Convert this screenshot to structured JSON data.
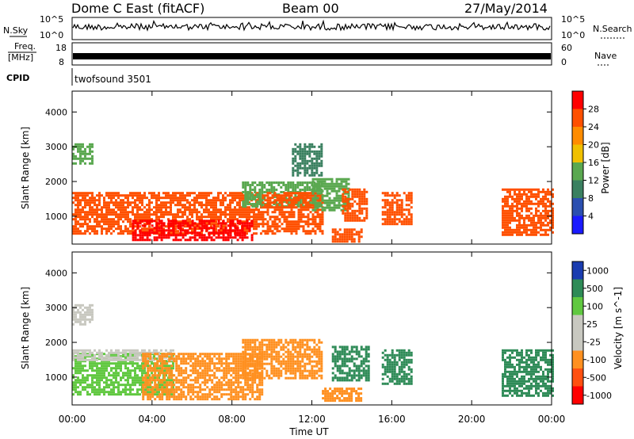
{
  "header": {
    "station": "Dome C East (fitACF)",
    "beam": "Beam 00",
    "date": "27/May/2014"
  },
  "nsky": {
    "label": "N.Sky",
    "ticks_left": [
      "10^5",
      "10^0"
    ],
    "ticks_right": [
      "10^5",
      "10^0"
    ],
    "right_label": "N.Search"
  },
  "freq": {
    "label_line1": "Freq.",
    "label_line2": "[MHz]",
    "ticks_left": [
      "18",
      "8"
    ],
    "ticks_right": [
      "60",
      "0"
    ],
    "right_label": "Nave"
  },
  "cpid": {
    "label": "CPID",
    "text": "twofsound 3501"
  },
  "colors": {
    "power": [
      "#1a1aff",
      "#2b4fb0",
      "#3a8060",
      "#5aa850",
      "#f0c000",
      "#ff8c00",
      "#ff5000",
      "#ff0000"
    ],
    "velocity": [
      "#ff0000",
      "#ff5010",
      "#ff9020",
      "#c8c8c0",
      "#c8c8c0",
      "#60c840",
      "#2e8b57",
      "#1a3cb0"
    ]
  },
  "chart_data": [
    {
      "type": "heatmap",
      "name": "power",
      "ylabel": "Slant Range [km]",
      "xlabel": "",
      "yticks": [
        1000,
        2000,
        3000,
        4000
      ],
      "ylim": [
        200,
        4600
      ],
      "xlim": [
        0,
        24
      ],
      "colorbar": {
        "label": "Power [dB]",
        "ticks": [
          "4",
          "8",
          "12",
          "16",
          "20",
          "24",
          "28"
        ],
        "levels": [
          0,
          4,
          8,
          12,
          16,
          20,
          24,
          28,
          32
        ]
      },
      "echo_regions": [
        {
          "t_start": 0.0,
          "t_end": 1.0,
          "r_min": 2500,
          "r_max": 3100,
          "level": 12
        },
        {
          "t_start": 0.0,
          "t_end": 9.5,
          "r_min": 500,
          "r_max": 1700,
          "level": 26
        },
        {
          "t_start": 3.0,
          "t_end": 9.0,
          "r_min": 300,
          "r_max": 900,
          "level": 28
        },
        {
          "t_start": 8.5,
          "t_end": 12.5,
          "r_min": 1300,
          "r_max": 2000,
          "level": 14
        },
        {
          "t_start": 9.5,
          "t_end": 12.5,
          "r_min": 500,
          "r_max": 1700,
          "level": 27
        },
        {
          "t_start": 11.0,
          "t_end": 12.5,
          "r_min": 2200,
          "r_max": 3100,
          "level": 8
        },
        {
          "t_start": 12.0,
          "t_end": 13.8,
          "r_min": 1200,
          "r_max": 2100,
          "level": 14
        },
        {
          "t_start": 13.0,
          "t_end": 14.5,
          "r_min": 300,
          "r_max": 650,
          "level": 24
        },
        {
          "t_start": 13.5,
          "t_end": 14.8,
          "r_min": 900,
          "r_max": 1800,
          "level": 26
        },
        {
          "t_start": 15.5,
          "t_end": 17.0,
          "r_min": 800,
          "r_max": 1700,
          "level": 26
        },
        {
          "t_start": 21.5,
          "t_end": 24.0,
          "r_min": 500,
          "r_max": 1800,
          "level": 26
        }
      ]
    },
    {
      "type": "heatmap",
      "name": "velocity",
      "ylabel": "Slant Range [km]",
      "xlabel": "Time UT",
      "xticks": [
        "00:00",
        "04:00",
        "08:00",
        "12:00",
        "16:00",
        "20:00",
        "00:00"
      ],
      "yticks": [
        1000,
        2000,
        3000,
        4000
      ],
      "ylim": [
        200,
        4600
      ],
      "xlim": [
        0,
        24
      ],
      "colorbar": {
        "label": "Velocity [m s^-1]",
        "ticks": [
          "1000",
          "500",
          "100",
          "25",
          "-25",
          "-100",
          "-500",
          "-1000"
        ],
        "levels": [
          -1500,
          -1000,
          -500,
          -100,
          -25,
          25,
          100,
          500,
          1000,
          1500
        ]
      },
      "echo_regions": [
        {
          "t_start": 0.0,
          "t_end": 1.0,
          "r_min": 2500,
          "r_max": 3100,
          "level": 0
        },
        {
          "t_start": 0.0,
          "t_end": 5.0,
          "r_min": 500,
          "r_max": 1700,
          "level": 80
        },
        {
          "t_start": 0.0,
          "t_end": 5.0,
          "r_min": 1500,
          "r_max": 1800,
          "level": 0
        },
        {
          "t_start": 3.5,
          "t_end": 9.5,
          "r_min": 400,
          "r_max": 1700,
          "level": -150
        },
        {
          "t_start": 8.5,
          "t_end": 12.5,
          "r_min": 1000,
          "r_max": 2100,
          "level": -300
        },
        {
          "t_start": 12.5,
          "t_end": 14.5,
          "r_min": 300,
          "r_max": 700,
          "level": -400
        },
        {
          "t_start": 13.0,
          "t_end": 14.8,
          "r_min": 900,
          "r_max": 1900,
          "level": 200
        },
        {
          "t_start": 15.5,
          "t_end": 17.0,
          "r_min": 800,
          "r_max": 1800,
          "level": 200
        },
        {
          "t_start": 21.5,
          "t_end": 24.0,
          "r_min": 500,
          "r_max": 1800,
          "level": 300
        }
      ]
    }
  ]
}
